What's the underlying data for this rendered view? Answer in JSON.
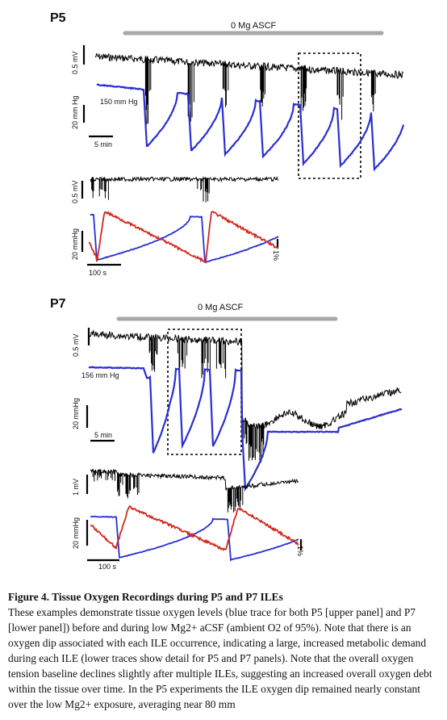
{
  "p5": {
    "label": "P5",
    "condition": "0 Mg ASCF",
    "top_scale_voltage": "0.5 mV",
    "top_scale_oxygen": "20 mm Hg",
    "baseline_oxygen": "150 mm Hg",
    "top_scale_time": "5 min",
    "detail_scale_voltage": "0.5 mV",
    "detail_scale_oxygen": "20 mmHg",
    "detail_scale_time": "100 s",
    "detail_scale_percent": "1%"
  },
  "p7": {
    "label": "P7",
    "condition": "0 Mg ASCF",
    "top_scale_voltage": "0.5 mV",
    "top_scale_oxygen": "20 mmHg",
    "baseline_oxygen": "156 mm Hg",
    "top_scale_time": "5 min",
    "detail_scale_voltage": "1 mV",
    "detail_scale_oxygen": "20 mmHg",
    "detail_scale_time": "100 s",
    "detail_scale_percent": "1%"
  },
  "colors": {
    "oxygen_trace": "#2a2fd0",
    "field_potential": "#000000",
    "red_trace": "#d0281e",
    "condition_bar": "#a8a8a8"
  },
  "caption": {
    "title": "Figure 4. Tissue Oxygen Recordings during P5 and P7 ILEs",
    "body": "These examples demonstrate tissue oxygen levels (blue trace for both P5 [upper panel] and P7 [lower panel]) before and during low Mg2+ aCSF (ambient O2 of 95%). Note that there is an oxygen dip associated with each ILE occurrence, indicating a large, increased metabolic demand during each ILE (lower traces show detail for P5 and P7 panels). Note that the overall oxygen tension baseline declines slightly after multiple ILEs, suggesting an increased overall oxygen debt within the tissue over time. In the P5 experiments the ILE oxygen dip remained nearly constant over the low Mg2+ exposure, averaging near 80 mm"
  }
}
